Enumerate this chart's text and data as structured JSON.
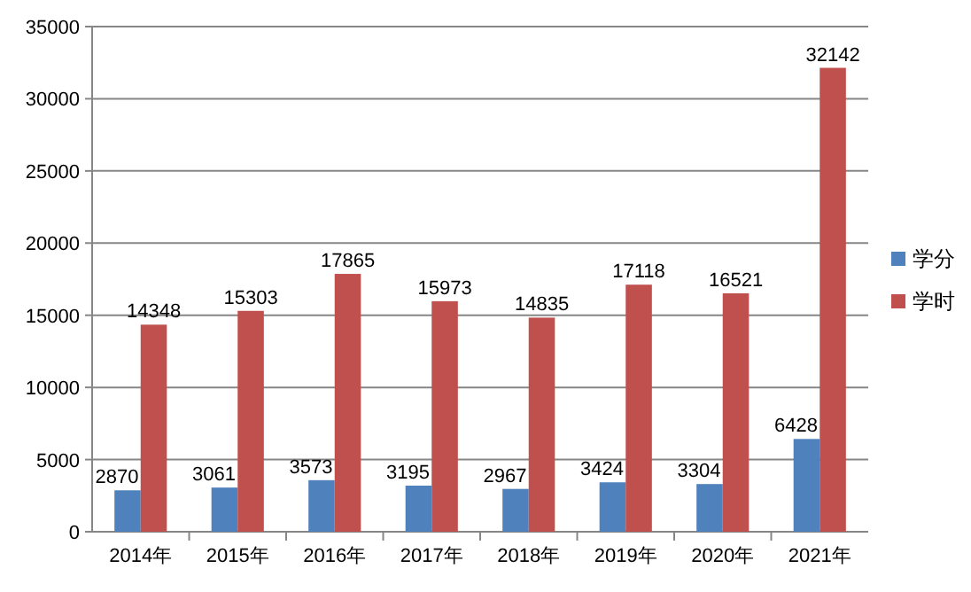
{
  "chart_data": {
    "type": "bar",
    "categories": [
      "2014年",
      "2015年",
      "2016年",
      "2017年",
      "2018年",
      "2019年",
      "2020年",
      "2021年"
    ],
    "series": [
      {
        "name": "学分",
        "color": "#4f81bd",
        "values": [
          2870,
          3061,
          3573,
          3195,
          2967,
          3424,
          3304,
          6428
        ]
      },
      {
        "name": "学时",
        "color": "#c0504d",
        "values": [
          14348,
          15303,
          17865,
          15973,
          14835,
          17118,
          16521,
          32142
        ]
      }
    ],
    "ylim": [
      0,
      35000
    ],
    "yticks": [
      0,
      5000,
      10000,
      15000,
      20000,
      25000,
      30000,
      35000
    ],
    "grid": "y",
    "legend": "right",
    "data_labels": true
  }
}
